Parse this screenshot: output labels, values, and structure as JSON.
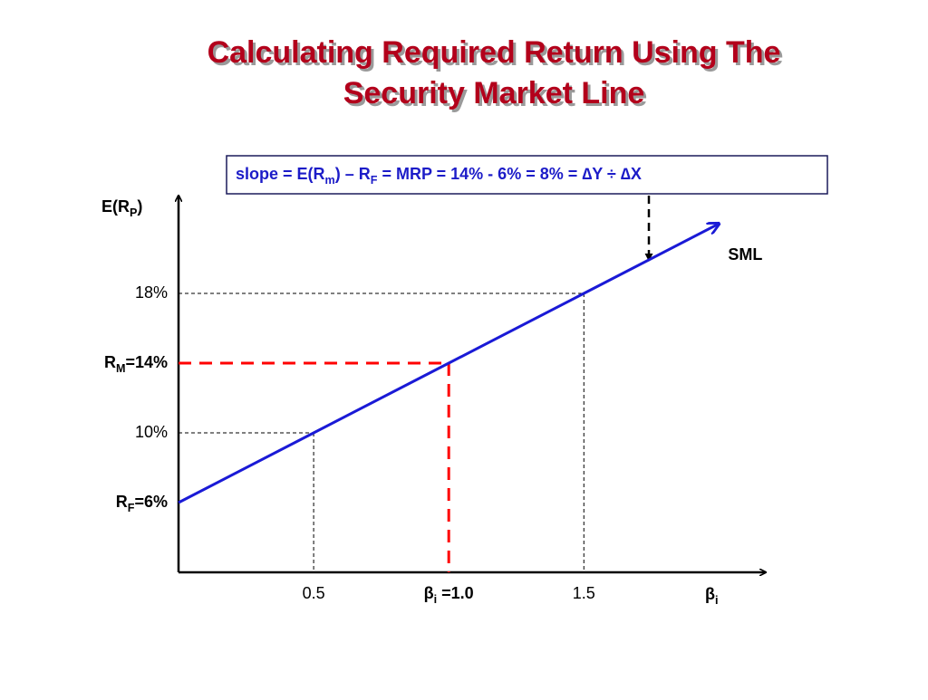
{
  "chart_data": {
    "type": "line",
    "title": [
      "Calculating Required Return Using The",
      "Security Market Line"
    ],
    "annotation": [
      {
        "text": "slope = E(R"
      },
      {
        "text": "m",
        "sub": true
      },
      {
        "text": ") – R"
      },
      {
        "text": "F",
        "sub": true
      },
      {
        "text": " = MRP = 14% - 6% = 8% = ∆Y ÷ ∆X"
      }
    ],
    "y_label": [
      {
        "text": "E(R"
      },
      {
        "text": "P",
        "sub": true
      },
      {
        "text": ")"
      }
    ],
    "x_label": [
      {
        "text": "β"
      },
      {
        "text": "i",
        "sub": true
      }
    ],
    "x": [
      0,
      0.5,
      1.0,
      1.5,
      2.0
    ],
    "series": [
      {
        "name": "SML",
        "color": "#1a1ad6",
        "values": [
          6,
          10,
          14,
          18,
          22
        ]
      }
    ],
    "xlim": [
      0,
      2.2
    ],
    "ylim": [
      2,
      24
    ],
    "xticks": [
      {
        "value": 0.5,
        "label": "0.5",
        "color": "#000000",
        "bold": false
      },
      {
        "value": 1.0,
        "label": [
          {
            "text": "β"
          },
          {
            "text": "i",
            "sub": true
          },
          {
            "text": " =1.0"
          }
        ],
        "color": "#ff0000",
        "bold": true
      },
      {
        "value": 1.5,
        "label": "1.5",
        "color": "#000000",
        "bold": false
      }
    ],
    "yticks": [
      {
        "value": 6,
        "label": [
          {
            "text": "R"
          },
          {
            "text": "F",
            "sub": true
          },
          {
            "text": "=6%"
          }
        ],
        "color": "#000000",
        "bold": true
      },
      {
        "value": 10,
        "label": "10%",
        "color": "#000000",
        "bold": false
      },
      {
        "value": 14,
        "label": [
          {
            "text": "R"
          },
          {
            "text": "M",
            "sub": true
          },
          {
            "text": "=14%"
          }
        ],
        "color": "#ff0000",
        "bold": true
      },
      {
        "value": 18,
        "label": "18%",
        "color": "#000000",
        "bold": false
      }
    ],
    "grid": false
  }
}
